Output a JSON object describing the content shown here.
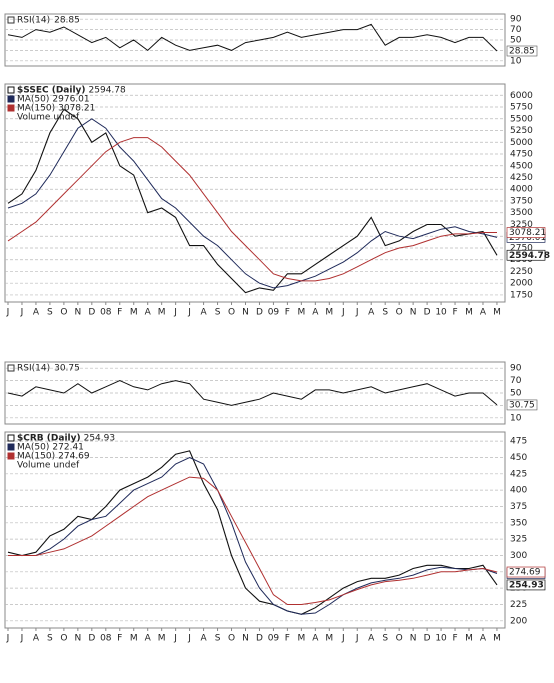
{
  "chart_data": [
    {
      "type": "line",
      "categories": [
        "J",
        "J",
        "A",
        "S",
        "O",
        "N",
        "D",
        "08",
        "F",
        "M",
        "A",
        "M",
        "J",
        "J",
        "A",
        "S",
        "O",
        "N",
        "D",
        "09",
        "F",
        "M",
        "A",
        "M",
        "J",
        "J",
        "A",
        "S",
        "O",
        "N",
        "D",
        "10",
        "F",
        "M",
        "A",
        "M"
      ],
      "rsi": {
        "name": "RSI(14)",
        "color": "#111111",
        "ylim": [
          0,
          100
        ],
        "yticks": [
          90,
          70,
          50,
          30,
          10
        ],
        "values": [
          60,
          55,
          70,
          65,
          75,
          60,
          45,
          55,
          35,
          50,
          30,
          55,
          40,
          30,
          35,
          40,
          30,
          45,
          50,
          55,
          65,
          55,
          60,
          65,
          70,
          70,
          80,
          40,
          55,
          55,
          60,
          55,
          45,
          55,
          55,
          28.85
        ]
      },
      "ylim": [
        1600,
        6240
      ],
      "yticks": [
        6000,
        5750,
        5500,
        5250,
        5000,
        4750,
        4500,
        4250,
        4000,
        3750,
        3500,
        3250,
        3000,
        2750,
        2500,
        2250,
        2000,
        1750
      ],
      "grid": true,
      "volume_label": "Volume undef",
      "series": [
        {
          "name": "$SSEC (Daily)",
          "color": "#111111",
          "values": [
            3700,
            3900,
            4400,
            5200,
            5700,
            5500,
            5000,
            5200,
            4500,
            4300,
            3500,
            3600,
            3400,
            2800,
            2800,
            2400,
            2100,
            1800,
            1900,
            1850,
            2200,
            2200,
            2400,
            2600,
            2800,
            3000,
            3400,
            2800,
            2900,
            3100,
            3250,
            3250,
            3000,
            3050,
            3100,
            2594.78
          ]
        },
        {
          "name": "MA(50)",
          "color": "#1f2a5a",
          "values": [
            3600,
            3700,
            3900,
            4300,
            4800,
            5300,
            5500,
            5300,
            4900,
            4600,
            4200,
            3800,
            3600,
            3300,
            3000,
            2800,
            2500,
            2200,
            2000,
            1900,
            1950,
            2050,
            2150,
            2300,
            2450,
            2650,
            2900,
            3100,
            3000,
            2950,
            3050,
            3150,
            3200,
            3100,
            3050,
            2976.01
          ]
        },
        {
          "name": "MA(150)",
          "color": "#b03030",
          "values": [
            2900,
            3100,
            3300,
            3600,
            3900,
            4200,
            4500,
            4800,
            5000,
            5100,
            5100,
            4900,
            4600,
            4300,
            3900,
            3500,
            3100,
            2800,
            2500,
            2200,
            2100,
            2050,
            2050,
            2100,
            2200,
            2350,
            2500,
            2650,
            2750,
            2800,
            2900,
            3000,
            3050,
            3050,
            3080,
            3078.21
          ]
        }
      ]
    },
    {
      "type": "line",
      "categories": [
        "J",
        "J",
        "A",
        "S",
        "O",
        "N",
        "D",
        "08",
        "F",
        "M",
        "A",
        "M",
        "J",
        "J",
        "A",
        "S",
        "O",
        "N",
        "D",
        "09",
        "F",
        "M",
        "A",
        "M",
        "J",
        "J",
        "A",
        "S",
        "O",
        "N",
        "D",
        "10",
        "F",
        "M",
        "A",
        "M"
      ],
      "rsi": {
        "name": "RSI(14)",
        "color": "#111111",
        "ylim": [
          0,
          100
        ],
        "yticks": [
          90,
          70,
          50,
          30,
          10
        ],
        "values": [
          50,
          45,
          60,
          55,
          50,
          65,
          50,
          60,
          70,
          60,
          55,
          65,
          70,
          65,
          40,
          35,
          30,
          35,
          40,
          50,
          45,
          40,
          55,
          55,
          50,
          55,
          60,
          50,
          55,
          60,
          65,
          55,
          45,
          50,
          50,
          30.75
        ]
      },
      "ylim": [
        189,
        489
      ],
      "yticks": [
        475,
        450,
        425,
        400,
        375,
        350,
        325,
        300,
        275,
        250,
        225,
        200
      ],
      "grid": true,
      "volume_label": "Volume undef",
      "series": [
        {
          "name": "$CRB (Daily)",
          "color": "#111111",
          "values": [
            305,
            300,
            305,
            330,
            340,
            360,
            355,
            375,
            400,
            410,
            420,
            435,
            455,
            460,
            410,
            370,
            300,
            250,
            230,
            225,
            215,
            210,
            220,
            235,
            250,
            260,
            265,
            265,
            270,
            280,
            285,
            285,
            280,
            280,
            285,
            254.93
          ]
        },
        {
          "name": "MA(50)",
          "color": "#1f2a5a",
          "values": [
            300,
            300,
            300,
            310,
            325,
            345,
            355,
            360,
            380,
            400,
            410,
            420,
            440,
            450,
            440,
            400,
            350,
            290,
            250,
            225,
            215,
            210,
            212,
            225,
            240,
            250,
            258,
            262,
            265,
            270,
            278,
            282,
            280,
            278,
            280,
            272.41
          ]
        },
        {
          "name": "MA(150)",
          "color": "#b03030",
          "values": [
            300,
            300,
            300,
            305,
            310,
            320,
            330,
            345,
            360,
            375,
            390,
            400,
            410,
            420,
            418,
            400,
            360,
            320,
            280,
            240,
            225,
            225,
            228,
            232,
            240,
            248,
            255,
            260,
            262,
            265,
            270,
            275,
            275,
            278,
            280,
            274.69
          ]
        }
      ]
    }
  ]
}
